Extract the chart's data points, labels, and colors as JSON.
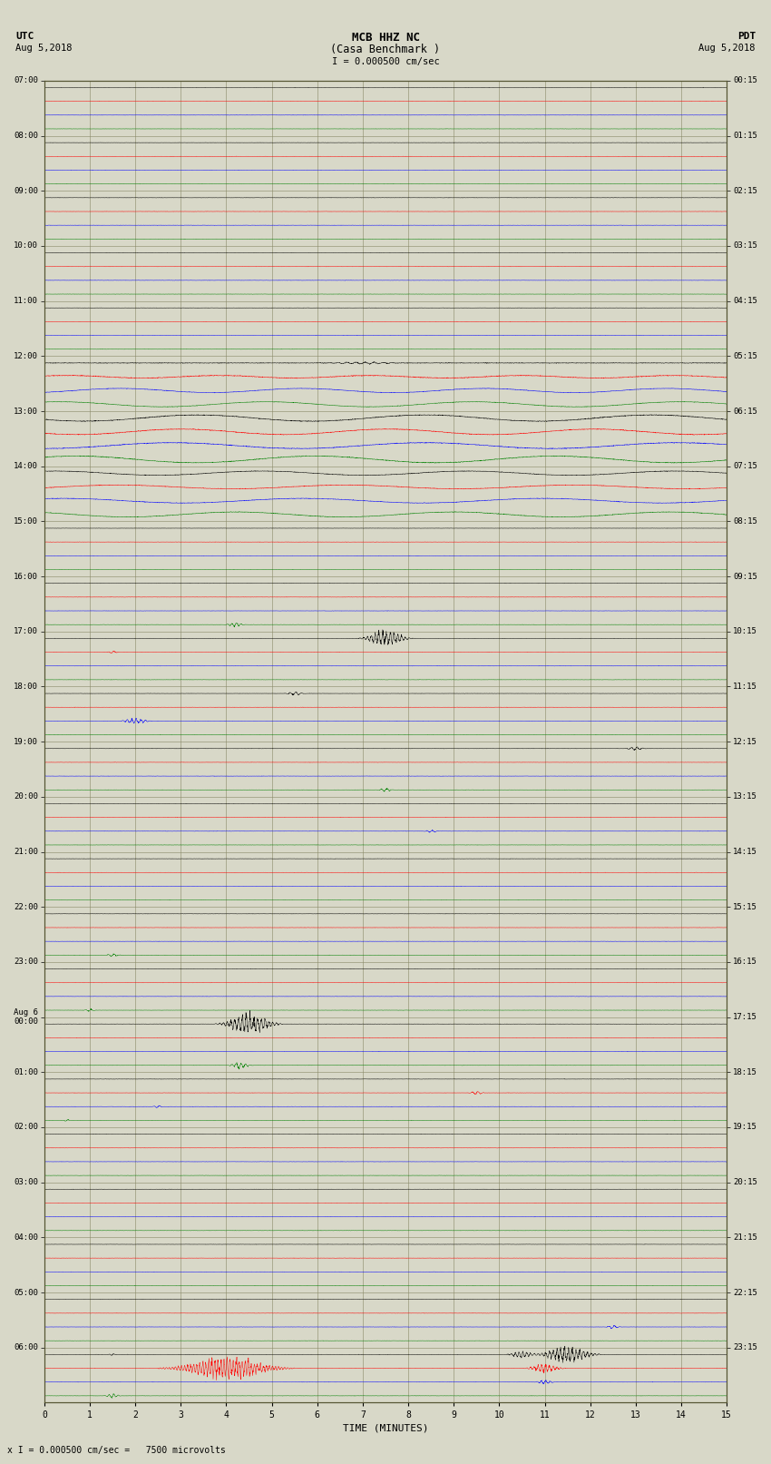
{
  "title_line1": "MCB HHZ NC",
  "title_line2": "(Casa Benchmark )",
  "scale_label": "I = 0.000500 cm/sec",
  "left_label_top": "UTC",
  "left_label_date": "Aug 5,2018",
  "right_label_top": "PDT",
  "right_label_date": "Aug 5,2018",
  "bottom_label": "TIME (MINUTES)",
  "footer_label": "x I = 0.000500 cm/sec =   7500 microvolts",
  "utc_labels": [
    "07:00",
    "08:00",
    "09:00",
    "10:00",
    "11:00",
    "12:00",
    "13:00",
    "14:00",
    "15:00",
    "16:00",
    "17:00",
    "18:00",
    "19:00",
    "20:00",
    "21:00",
    "22:00",
    "23:00",
    "Aug 6\n00:00",
    "01:00",
    "02:00",
    "03:00",
    "04:00",
    "05:00",
    "06:00"
  ],
  "pdt_labels": [
    "00:15",
    "01:15",
    "02:15",
    "03:15",
    "04:15",
    "05:15",
    "06:15",
    "07:15",
    "08:15",
    "09:15",
    "10:15",
    "11:15",
    "12:15",
    "13:15",
    "14:15",
    "15:15",
    "16:15",
    "17:15",
    "18:15",
    "19:15",
    "20:15",
    "21:15",
    "22:15",
    "23:15"
  ],
  "n_rows": 24,
  "traces_per_row": 4,
  "minutes": 15,
  "bg_color": "#d8d8c8",
  "plot_bg": "#d8d8c8",
  "grid_color": "#888866",
  "trace_colors": [
    "black",
    "red",
    "blue",
    "green"
  ],
  "noise_seed": 42
}
